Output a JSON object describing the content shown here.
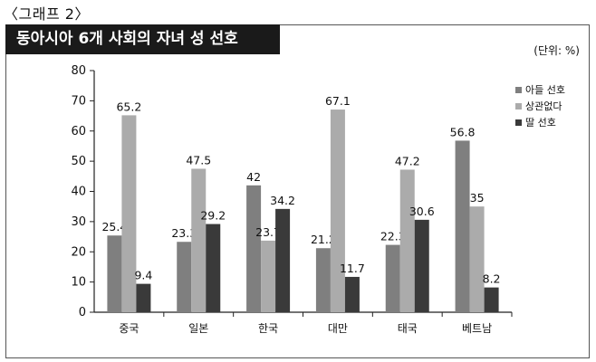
{
  "figure_label": "〈그래프 2〉",
  "title": "동아시아 6개 사회의 자녀 성 선호",
  "unit": "(단위: %)",
  "colors": {
    "series_0": "#7f7f7f",
    "series_1": "#ababab",
    "series_2": "#3a3a3a"
  },
  "chart_data": {
    "type": "bar",
    "title": "동아시아 6개 사회의 자녀 성 선호",
    "unit": "(단위: %)",
    "categories": [
      "중국",
      "일본",
      "한국",
      "대만",
      "태국",
      "베트남"
    ],
    "series": [
      {
        "name": "아들 선호",
        "values": [
          25.4,
          23.3,
          42,
          21.2,
          22.3,
          56.8
        ]
      },
      {
        "name": "상관없다",
        "values": [
          65.2,
          47.5,
          23.7,
          67.1,
          47.2,
          35
        ]
      },
      {
        "name": "딸 선호",
        "values": [
          9.4,
          29.2,
          34.2,
          11.7,
          30.6,
          8.2
        ]
      }
    ],
    "ylim": [
      0,
      80
    ],
    "yticks": [
      "0",
      "10",
      "20",
      "30",
      "40",
      "50",
      "60",
      "70",
      "80"
    ],
    "grid": false,
    "legend": "right"
  }
}
